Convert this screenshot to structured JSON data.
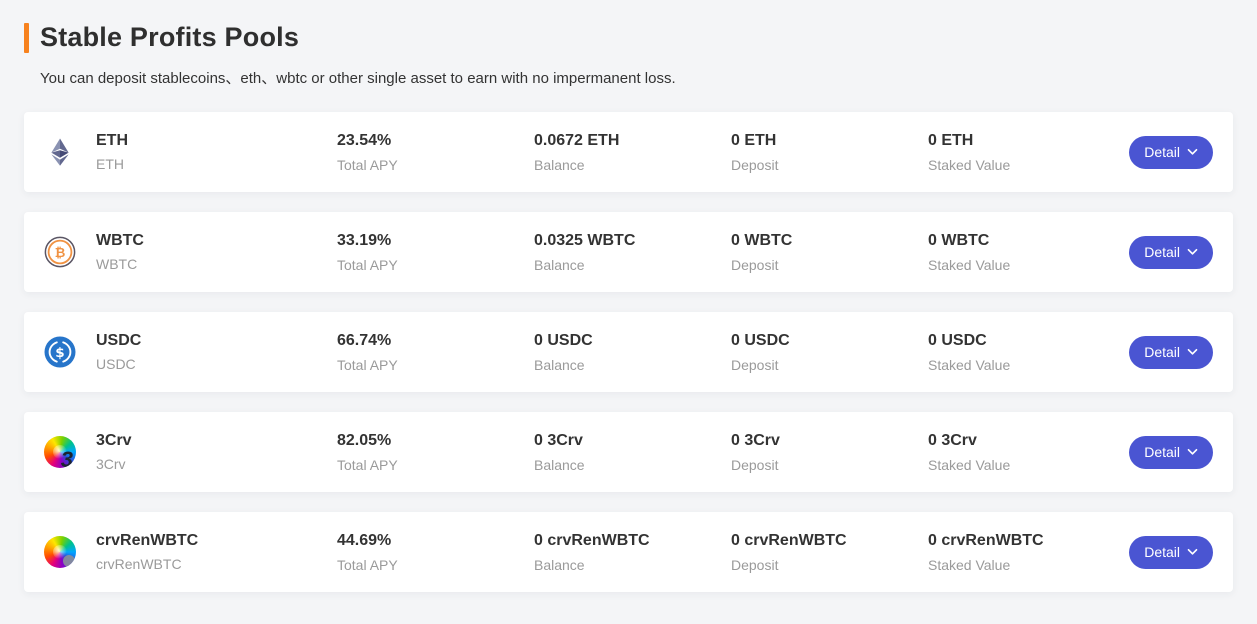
{
  "page": {
    "title": "Stable Profits Pools",
    "subtitle": "You can deposit stablecoins、eth、wbtc or other single asset to earn with no impermanent loss."
  },
  "labels": {
    "total_apy": "Total APY",
    "balance": "Balance",
    "deposit": "Deposit",
    "staked_value": "Staked Value",
    "detail_button": "Detail",
    "chevron_icon": "chevron-down-icon"
  },
  "colors": {
    "accent_bar": "#f7821e",
    "detail_button": "#4a55d2",
    "usdc_blue": "#2775ca",
    "wbtc_orange": "#f09242"
  },
  "pools": [
    {
      "name": "ETH",
      "symbol": "ETH",
      "apy": "23.54%",
      "balance": "0.0672 ETH",
      "deposit": "0 ETH",
      "staked": "0 ETH",
      "icon": "eth-icon"
    },
    {
      "name": "WBTC",
      "symbol": "WBTC",
      "apy": "33.19%",
      "balance": "0.0325 WBTC",
      "deposit": "0 WBTC",
      "staked": "0 WBTC",
      "icon": "wbtc-icon"
    },
    {
      "name": "USDC",
      "symbol": "USDC",
      "apy": "66.74%",
      "balance": "0 USDC",
      "deposit": "0 USDC",
      "staked": "0 USDC",
      "icon": "usdc-icon"
    },
    {
      "name": "3Crv",
      "symbol": "3Crv",
      "apy": "82.05%",
      "balance": "0 3Crv",
      "deposit": "0 3Crv",
      "staked": "0 3Crv",
      "icon": "3crv-icon"
    },
    {
      "name": "crvRenWBTC",
      "symbol": "crvRenWBTC",
      "apy": "44.69%",
      "balance": "0 crvRenWBTC",
      "deposit": "0 crvRenWBTC",
      "staked": "0 crvRenWBTC",
      "icon": "crvrenwbtc-icon"
    }
  ]
}
